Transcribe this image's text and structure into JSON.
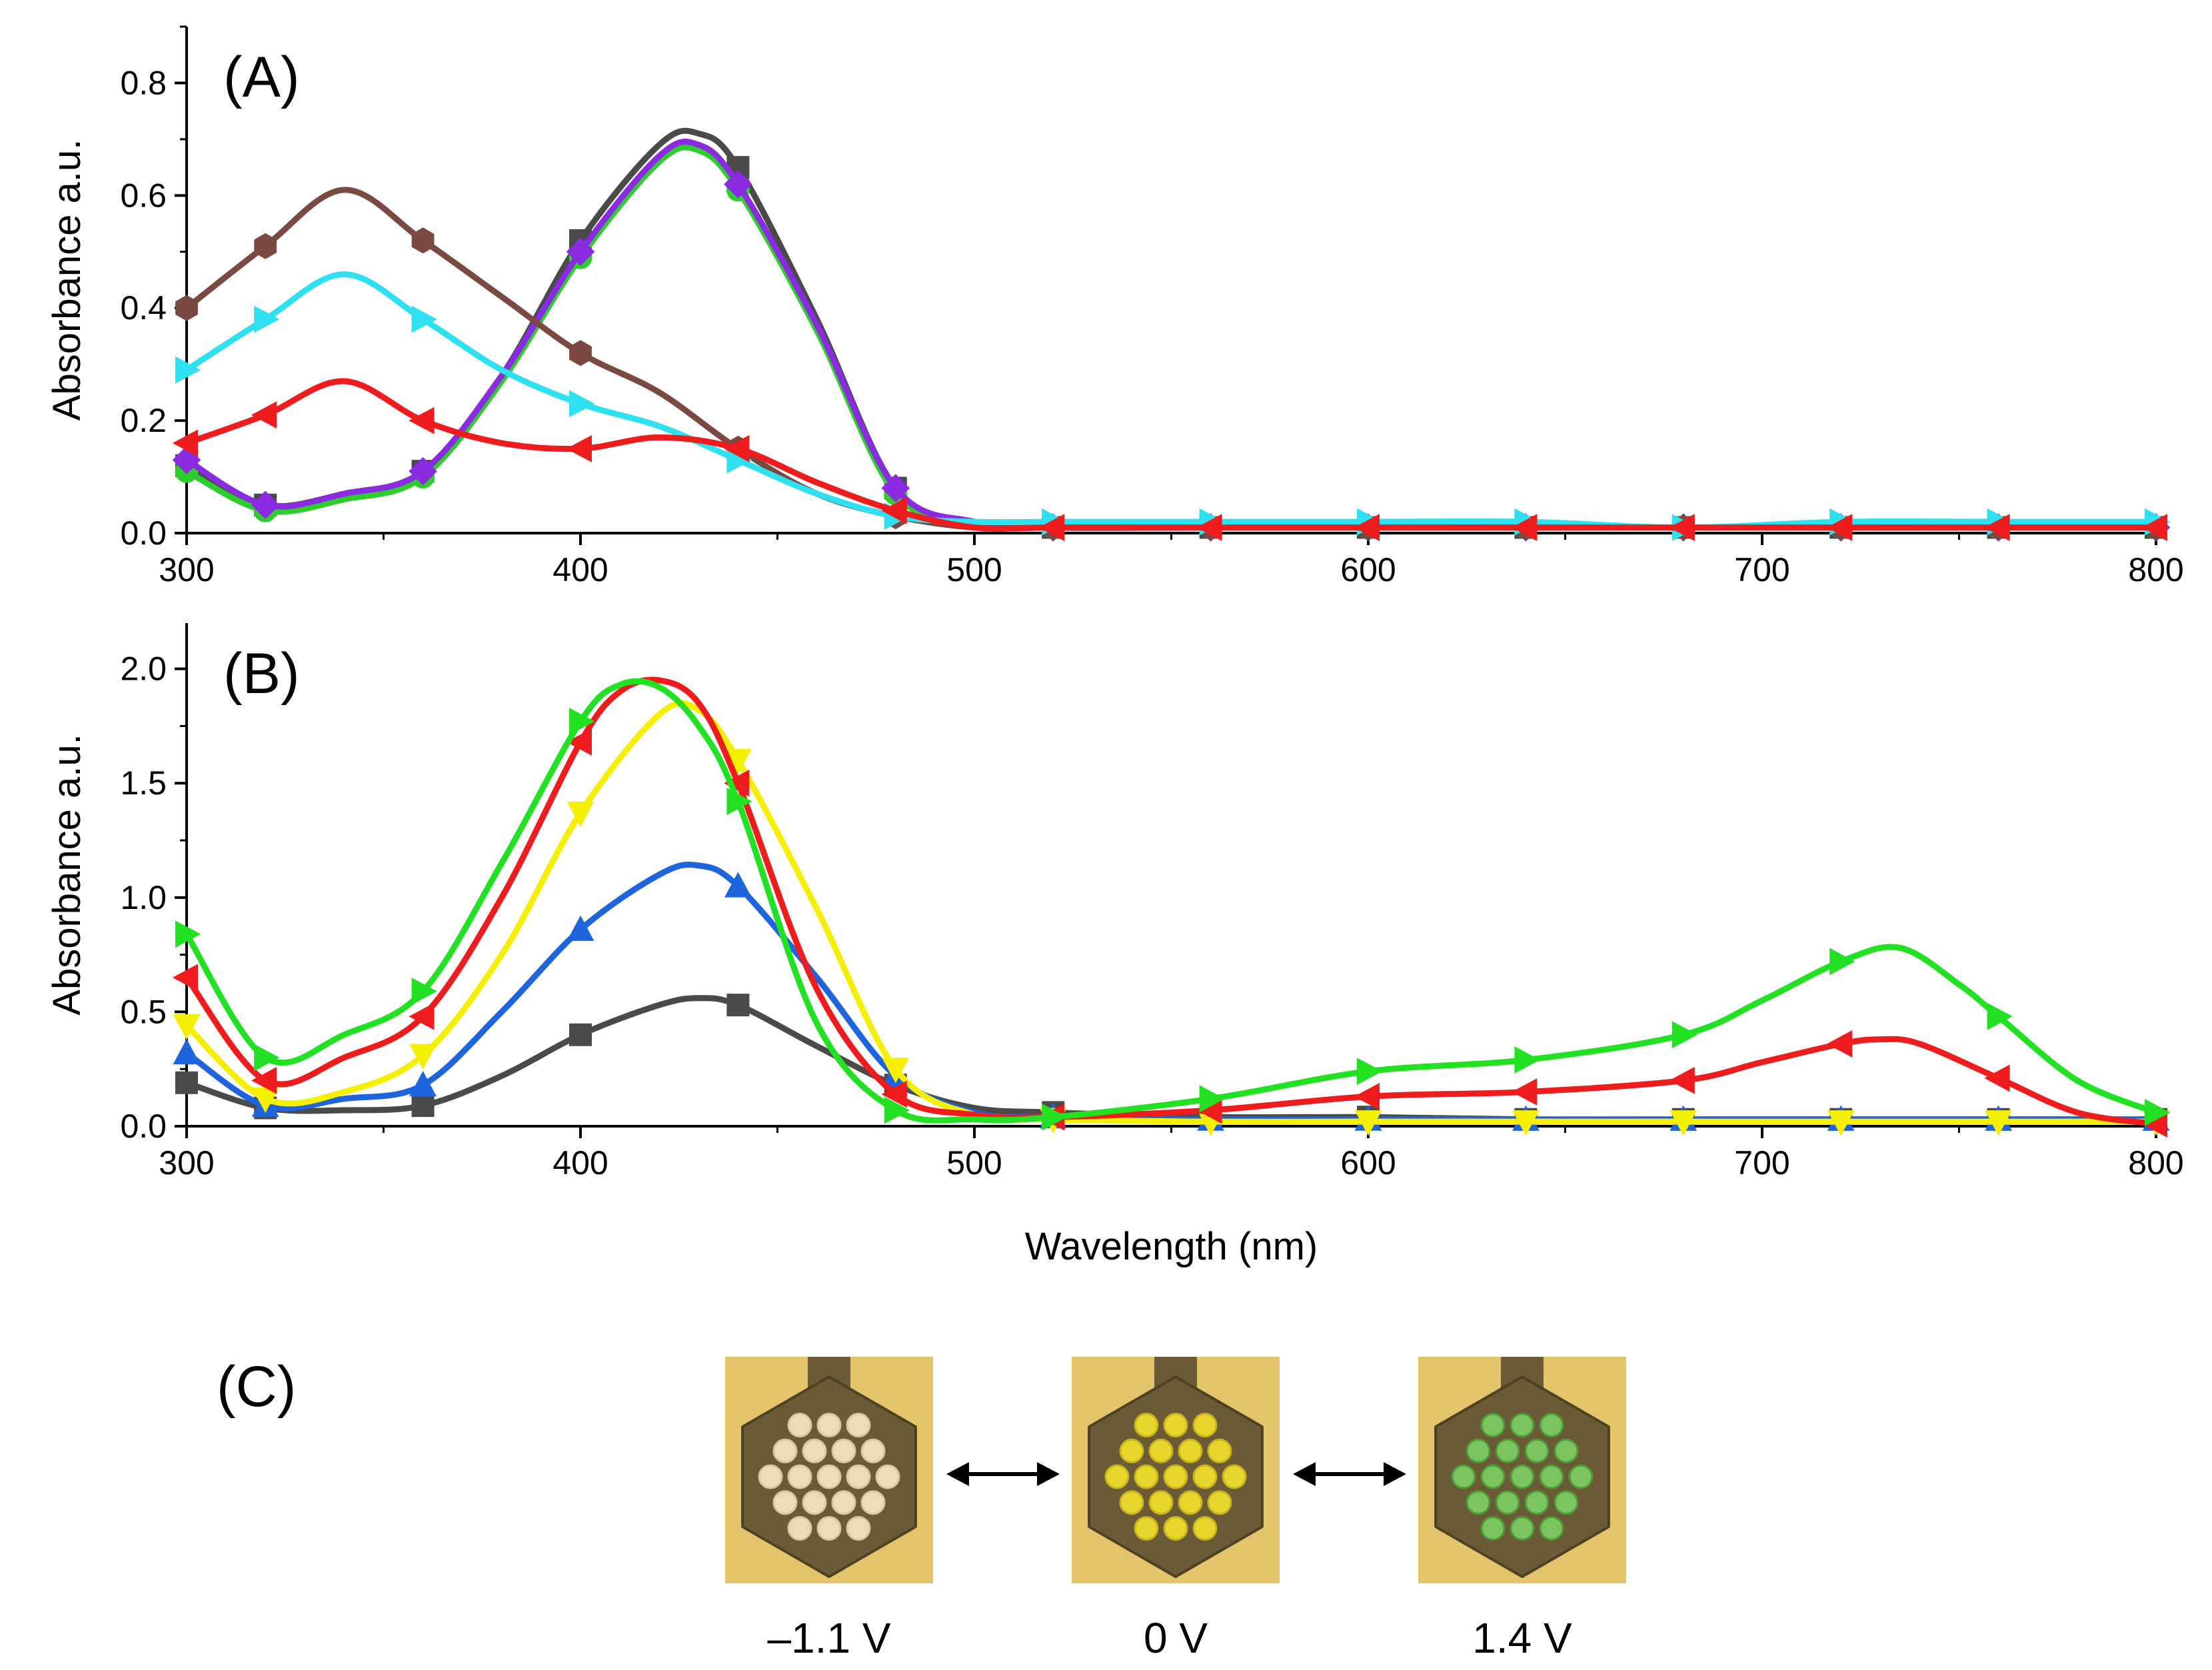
{
  "panel_c": {
    "label": "(C)",
    "states": [
      {
        "voltage": "–1.1 V",
        "dot_color": "#ecdcb8",
        "dot_rim": "#d8c89e"
      },
      {
        "voltage": "0 V",
        "dot_color": "#e8d62c",
        "dot_rim": "#c8b41c"
      },
      {
        "voltage": "1.4 V",
        "dot_color": "#7cc460",
        "dot_rim": "#4c9a38"
      }
    ],
    "arrow_icon": "double-arrow-icon",
    "background_color": "#e4c46a",
    "frame_color": "#6a5a36"
  },
  "chart_data": [
    {
      "type": "line",
      "panel": "(A)",
      "title": "",
      "xlabel": "",
      "ylabel": "Absorbance a.u.",
      "xlim": [
        300,
        800
      ],
      "ylim": [
        0,
        0.9
      ],
      "xticks": [
        "300",
        "400",
        "500",
        "600",
        "700",
        "800"
      ],
      "yticks": [
        "0.0",
        "0.2",
        "0.4",
        "0.6",
        "0.8"
      ],
      "series": [
        {
          "name": "dark-grey",
          "color": "#4a4a4a",
          "marker": "square",
          "x": [
            300,
            320,
            340,
            360,
            380,
            400,
            420,
            430,
            440,
            460,
            480,
            500,
            520,
            560,
            600,
            640,
            680,
            720,
            760,
            800
          ],
          "y": [
            0.12,
            0.05,
            0.07,
            0.11,
            0.28,
            0.52,
            0.69,
            0.71,
            0.65,
            0.38,
            0.08,
            0.02,
            0.01,
            0.01,
            0.01,
            0.01,
            0.01,
            0.01,
            0.01,
            0.01
          ]
        },
        {
          "name": "green",
          "color": "#2ecc2e",
          "marker": "circle",
          "x": [
            300,
            320,
            340,
            360,
            380,
            400,
            420,
            430,
            440,
            460,
            480,
            500,
            520,
            560,
            600,
            640,
            680,
            720,
            760,
            800
          ],
          "y": [
            0.11,
            0.04,
            0.06,
            0.1,
            0.27,
            0.49,
            0.66,
            0.68,
            0.61,
            0.36,
            0.07,
            0.02,
            0.01,
            0.01,
            0.01,
            0.01,
            0.01,
            0.01,
            0.01,
            0.01
          ]
        },
        {
          "name": "purple",
          "color": "#8a2be2",
          "marker": "diamond",
          "x": [
            300,
            320,
            340,
            360,
            380,
            400,
            420,
            430,
            440,
            460,
            480,
            500,
            520,
            560,
            600,
            640,
            680,
            720,
            760,
            800
          ],
          "y": [
            0.13,
            0.05,
            0.07,
            0.11,
            0.28,
            0.5,
            0.67,
            0.69,
            0.62,
            0.37,
            0.08,
            0.02,
            0.01,
            0.01,
            0.01,
            0.01,
            0.01,
            0.01,
            0.01,
            0.01
          ]
        },
        {
          "name": "brown",
          "color": "#7a4a42",
          "marker": "hexagon",
          "x": [
            300,
            320,
            340,
            360,
            380,
            400,
            420,
            440,
            460,
            480,
            500,
            520,
            560,
            600,
            640,
            680,
            720,
            760,
            800
          ],
          "y": [
            0.4,
            0.51,
            0.61,
            0.52,
            0.42,
            0.32,
            0.25,
            0.15,
            0.07,
            0.03,
            0.01,
            0.01,
            0.01,
            0.01,
            0.01,
            0.01,
            0.01,
            0.01,
            0.01
          ]
        },
        {
          "name": "cyan",
          "color": "#2ee0f0",
          "marker": "triangle-right",
          "x": [
            300,
            320,
            340,
            360,
            380,
            400,
            420,
            440,
            460,
            480,
            500,
            520,
            560,
            600,
            640,
            680,
            720,
            760,
            800
          ],
          "y": [
            0.29,
            0.38,
            0.46,
            0.38,
            0.29,
            0.23,
            0.19,
            0.13,
            0.07,
            0.03,
            0.02,
            0.02,
            0.02,
            0.02,
            0.02,
            0.01,
            0.02,
            0.02,
            0.02
          ]
        },
        {
          "name": "red",
          "color": "#ee1c1c",
          "marker": "triangle-left",
          "x": [
            300,
            320,
            340,
            360,
            380,
            400,
            420,
            440,
            460,
            480,
            500,
            520,
            560,
            600,
            640,
            680,
            720,
            760,
            800
          ],
          "y": [
            0.16,
            0.21,
            0.27,
            0.2,
            0.16,
            0.15,
            0.17,
            0.15,
            0.09,
            0.04,
            0.01,
            0.01,
            0.01,
            0.01,
            0.01,
            0.01,
            0.01,
            0.01,
            0.01
          ]
        }
      ]
    },
    {
      "type": "line",
      "panel": "(B)",
      "title": "",
      "xlabel": "Wavelength (nm)",
      "ylabel": "Absorbance a.u.",
      "xlim": [
        300,
        800
      ],
      "ylim": [
        0,
        2.2
      ],
      "xticks": [
        "300",
        "400",
        "500",
        "600",
        "700",
        "800"
      ],
      "yticks": [
        "0.0",
        "0.5",
        "1.0",
        "1.5",
        "2.0"
      ],
      "series": [
        {
          "name": "dark-grey",
          "color": "#4a4a4a",
          "marker": "square",
          "x": [
            300,
            320,
            340,
            360,
            380,
            400,
            420,
            430,
            440,
            460,
            480,
            500,
            520,
            560,
            600,
            640,
            680,
            720,
            760,
            800
          ],
          "y": [
            0.19,
            0.08,
            0.07,
            0.09,
            0.22,
            0.4,
            0.53,
            0.56,
            0.53,
            0.35,
            0.18,
            0.08,
            0.06,
            0.04,
            0.04,
            0.03,
            0.03,
            0.03,
            0.03,
            0.03
          ]
        },
        {
          "name": "blue",
          "color": "#1e64dc",
          "marker": "triangle-up",
          "x": [
            300,
            320,
            340,
            360,
            380,
            400,
            420,
            430,
            440,
            460,
            480,
            500,
            520,
            560,
            600,
            640,
            680,
            720,
            760,
            800
          ],
          "y": [
            0.32,
            0.09,
            0.12,
            0.18,
            0.5,
            0.86,
            1.1,
            1.14,
            1.05,
            0.65,
            0.22,
            0.06,
            0.04,
            0.03,
            0.03,
            0.03,
            0.03,
            0.03,
            0.03,
            0.03
          ]
        },
        {
          "name": "yellow",
          "color": "#f4f000",
          "marker": "triangle-down",
          "x": [
            300,
            320,
            340,
            360,
            380,
            400,
            420,
            430,
            440,
            460,
            480,
            500,
            520,
            560,
            600,
            640,
            680,
            720,
            760,
            800
          ],
          "y": [
            0.44,
            0.12,
            0.15,
            0.31,
            0.75,
            1.37,
            1.8,
            1.82,
            1.6,
            0.95,
            0.25,
            0.05,
            0.03,
            0.02,
            0.02,
            0.02,
            0.02,
            0.02,
            0.02,
            0.02
          ]
        },
        {
          "name": "red",
          "color": "#ee1c1c",
          "marker": "triangle-left",
          "x": [
            300,
            320,
            340,
            360,
            380,
            400,
            410,
            420,
            430,
            440,
            460,
            480,
            500,
            520,
            560,
            600,
            640,
            680,
            700,
            720,
            730,
            740,
            760,
            780,
            800
          ],
          "y": [
            0.65,
            0.2,
            0.3,
            0.48,
            1.0,
            1.68,
            1.9,
            1.95,
            1.85,
            1.5,
            0.6,
            0.14,
            0.05,
            0.04,
            0.07,
            0.13,
            0.15,
            0.2,
            0.28,
            0.36,
            0.38,
            0.36,
            0.21,
            0.06,
            0.01
          ]
        },
        {
          "name": "green",
          "color": "#22e022",
          "marker": "triangle-right",
          "x": [
            300,
            320,
            340,
            360,
            380,
            400,
            410,
            420,
            430,
            440,
            460,
            480,
            500,
            520,
            560,
            600,
            640,
            680,
            700,
            720,
            735,
            750,
            760,
            780,
            800
          ],
          "y": [
            0.84,
            0.3,
            0.4,
            0.59,
            1.15,
            1.77,
            1.93,
            1.92,
            1.75,
            1.42,
            0.45,
            0.07,
            0.03,
            0.04,
            0.12,
            0.24,
            0.29,
            0.4,
            0.55,
            0.72,
            0.78,
            0.62,
            0.48,
            0.2,
            0.06
          ]
        }
      ]
    }
  ]
}
